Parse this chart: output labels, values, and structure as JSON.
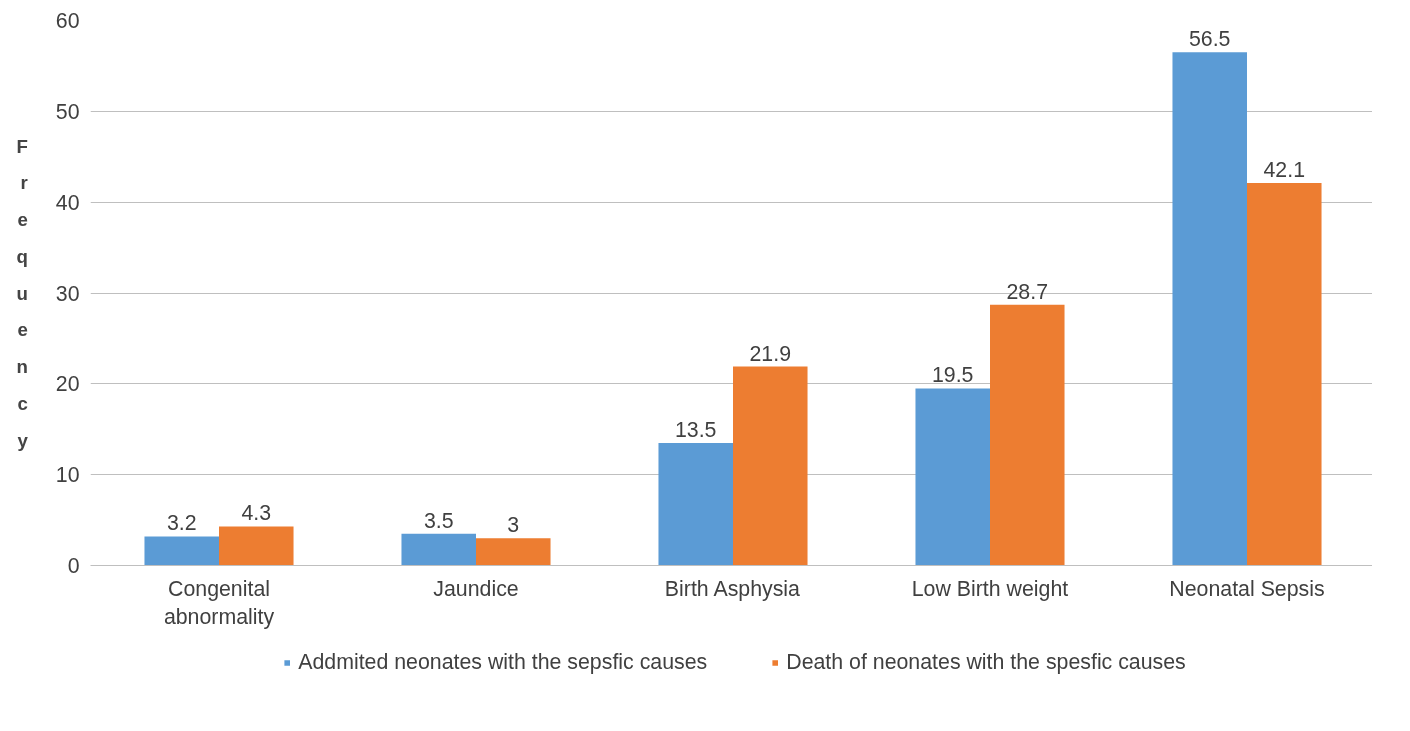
{
  "chart_data": {
    "type": "bar",
    "ylabel": "Frequency",
    "categories": [
      "Congenital abnormality",
      "Jaundice",
      "Birth Asphysia",
      "Low Birth weight",
      "Neonatal Sepsis"
    ],
    "series": [
      {
        "name": "Addmited neonates with the sepsfic causes",
        "color": "#5b9bd5",
        "values": [
          3.2,
          3.5,
          13.5,
          19.5,
          56.5
        ]
      },
      {
        "name": "Death of neonates with the spesfic causes",
        "color": "#ed7d31",
        "values": [
          4.3,
          3,
          21.9,
          28.7,
          42.1
        ]
      }
    ],
    "ylim": [
      0,
      60
    ],
    "yticks": [
      0,
      10,
      20,
      30,
      40,
      50,
      60
    ],
    "grid": "y",
    "legend": "bottom",
    "data_labels": true
  }
}
